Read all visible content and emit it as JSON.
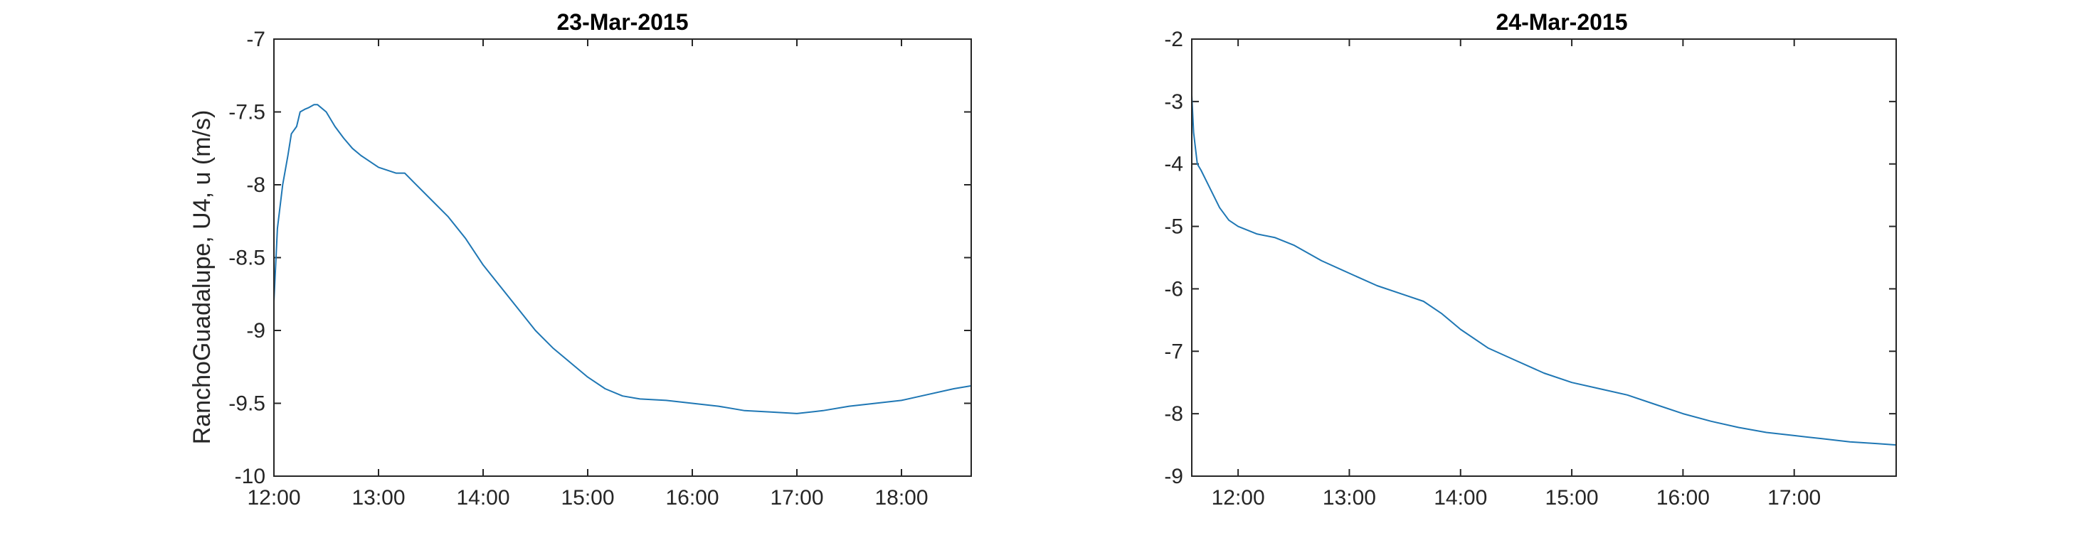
{
  "figure": {
    "background": "#ffffff",
    "line_color": "#1f77b4"
  },
  "chart_data": [
    {
      "type": "line",
      "title": "23-Mar-2015",
      "xlabel": "",
      "ylabel": "RanchoGuadalupe, U4, u (m/s)",
      "xlim": [
        "12:00",
        "18:40"
      ],
      "ylim": [
        -10,
        -7
      ],
      "xticks": [
        "12:00",
        "13:00",
        "14:00",
        "15:00",
        "16:00",
        "17:00",
        "18:00"
      ],
      "yticks": [
        "-7",
        "-7.5",
        "-8",
        "-8.5",
        "-9",
        "-9.5",
        "-10"
      ],
      "grid": false,
      "series": [
        {
          "color": "#1f77b4",
          "x": [
            "12:00",
            "12:02",
            "12:05",
            "12:08",
            "12:10",
            "12:13",
            "12:15",
            "12:18",
            "12:20",
            "12:23",
            "12:25",
            "12:30",
            "12:35",
            "12:40",
            "12:45",
            "12:50",
            "13:00",
            "13:10",
            "13:15",
            "13:20",
            "13:30",
            "13:40",
            "13:50",
            "14:00",
            "14:10",
            "14:20",
            "14:30",
            "14:40",
            "14:50",
            "15:00",
            "15:10",
            "15:20",
            "15:30",
            "15:45",
            "16:00",
            "16:15",
            "16:30",
            "16:45",
            "17:00",
            "17:15",
            "17:30",
            "17:45",
            "18:00",
            "18:15",
            "18:30",
            "18:40"
          ],
          "y": [
            -8.8,
            -8.3,
            -8.0,
            -7.8,
            -7.65,
            -7.6,
            -7.5,
            -7.48,
            -7.47,
            -7.45,
            -7.45,
            -7.5,
            -7.6,
            -7.68,
            -7.75,
            -7.8,
            -7.88,
            -7.92,
            -7.92,
            -7.98,
            -8.1,
            -8.22,
            -8.37,
            -8.55,
            -8.7,
            -8.85,
            -9.0,
            -9.12,
            -9.22,
            -9.32,
            -9.4,
            -9.45,
            -9.47,
            -9.48,
            -9.5,
            -9.52,
            -9.55,
            -9.56,
            -9.57,
            -9.55,
            -9.52,
            -9.5,
            -9.48,
            -9.44,
            -9.4,
            -9.38
          ]
        }
      ]
    },
    {
      "type": "line",
      "title": "24-Mar-2015",
      "xlabel": "",
      "ylabel": "",
      "xlim": [
        "11:35",
        "17:55"
      ],
      "ylim": [
        -9,
        -2
      ],
      "xticks": [
        "12:00",
        "13:00",
        "14:00",
        "15:00",
        "16:00",
        "17:00"
      ],
      "yticks": [
        "-2",
        "-3",
        "-4",
        "-5",
        "-6",
        "-7",
        "-8",
        "-9"
      ],
      "grid": false,
      "series": [
        {
          "color": "#1f77b4",
          "x": [
            "11:35",
            "11:36",
            "11:38",
            "11:40",
            "11:45",
            "11:50",
            "11:55",
            "12:00",
            "12:10",
            "12:20",
            "12:30",
            "12:45",
            "13:00",
            "13:15",
            "13:30",
            "13:40",
            "13:50",
            "14:00",
            "14:15",
            "14:30",
            "14:45",
            "15:00",
            "15:15",
            "15:30",
            "15:45",
            "16:00",
            "16:15",
            "16:30",
            "16:45",
            "17:00",
            "17:15",
            "17:30",
            "17:45",
            "17:55"
          ],
          "y": [
            -2.9,
            -3.5,
            -4.0,
            -4.1,
            -4.4,
            -4.7,
            -4.9,
            -5.0,
            -5.12,
            -5.18,
            -5.3,
            -5.55,
            -5.75,
            -5.95,
            -6.1,
            -6.2,
            -6.4,
            -6.65,
            -6.95,
            -7.15,
            -7.35,
            -7.5,
            -7.6,
            -7.7,
            -7.85,
            -8.0,
            -8.12,
            -8.22,
            -8.3,
            -8.35,
            -8.4,
            -8.45,
            -8.48,
            -8.5
          ]
        }
      ]
    }
  ]
}
